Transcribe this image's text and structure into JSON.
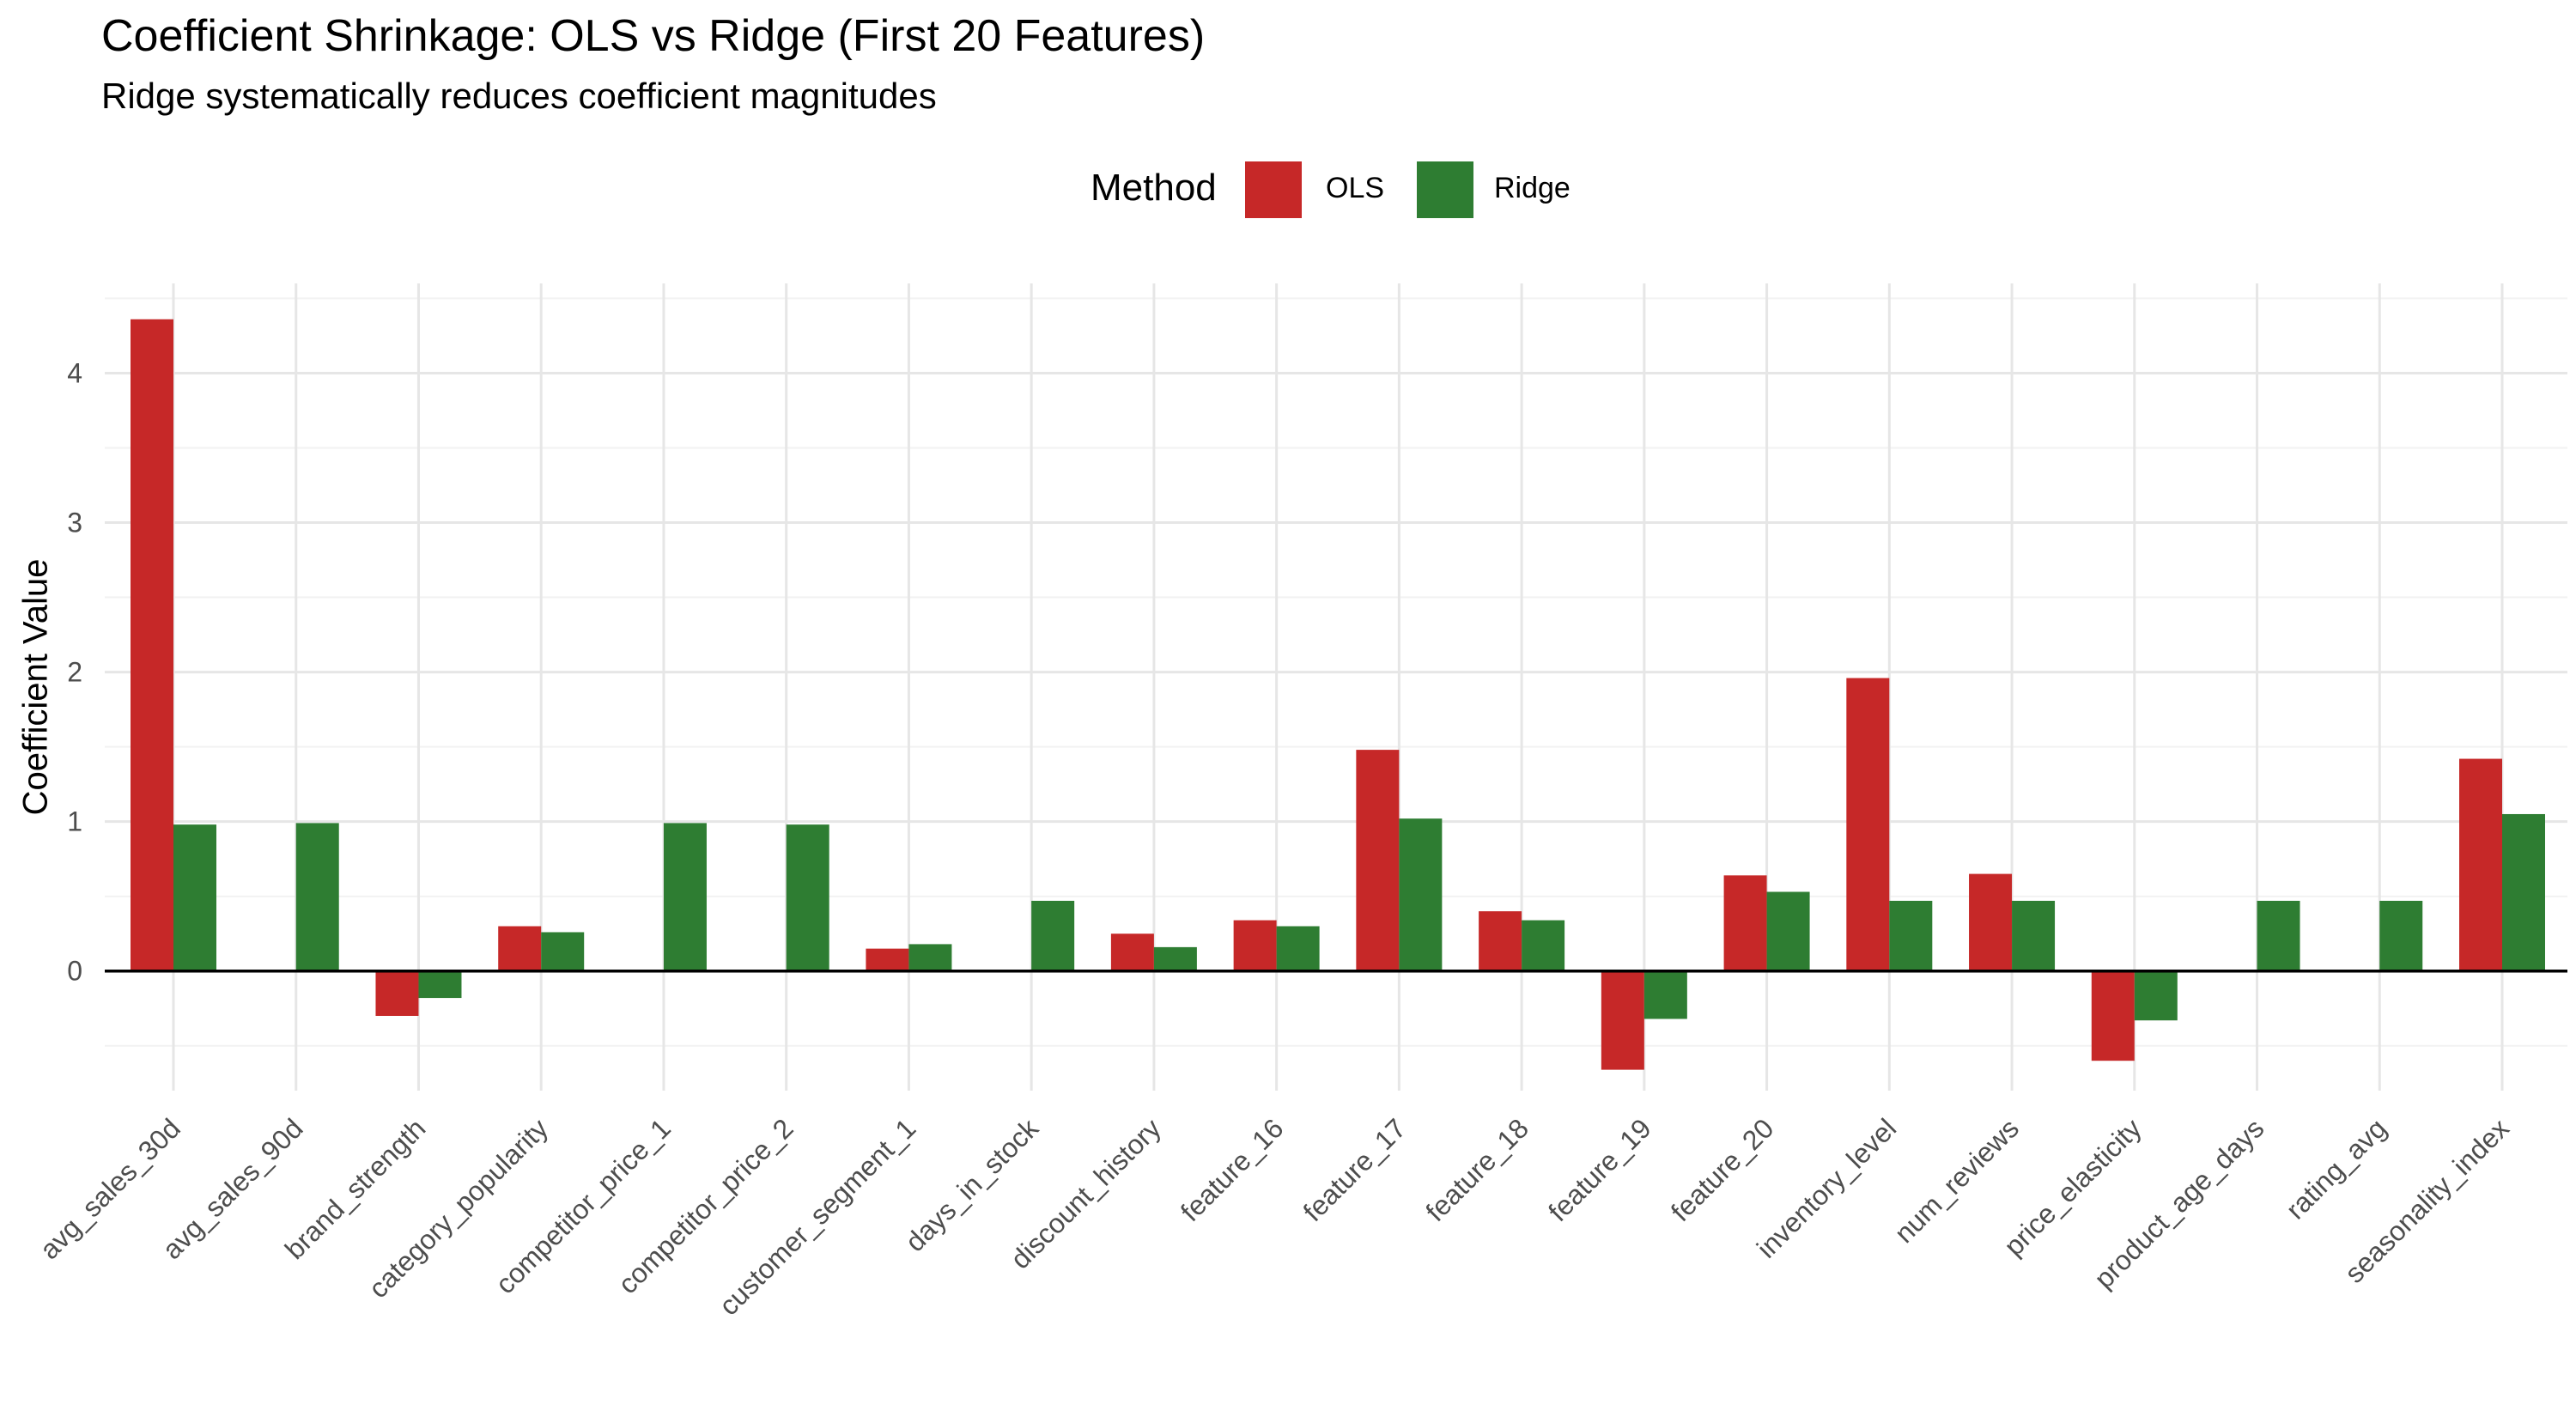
{
  "chart_data": {
    "type": "bar",
    "title": "Coefficient Shrinkage: OLS vs Ridge (First 20 Features)",
    "subtitle": "Ridge systematically reduces coefficient magnitudes",
    "xlabel": "",
    "ylabel": "Coefficient Value",
    "legend_title": "Method",
    "legend_position": "top",
    "grid": true,
    "ylim": [
      -0.8,
      4.6
    ],
    "yticks": [
      0,
      1,
      2,
      3,
      4
    ],
    "categories": [
      "avg_sales_30d",
      "avg_sales_90d",
      "brand_strength",
      "category_popularity",
      "competitor_price_1",
      "competitor_price_2",
      "customer_segment_1",
      "days_in_stock",
      "discount_history",
      "feature_16",
      "feature_17",
      "feature_18",
      "feature_19",
      "feature_20",
      "inventory_level",
      "num_reviews",
      "price_elasticity",
      "product_age_days",
      "rating_avg",
      "seasonality_index"
    ],
    "series": [
      {
        "name": "OLS",
        "color": "#c62828",
        "values": [
          4.36,
          null,
          -0.3,
          0.3,
          null,
          null,
          0.15,
          null,
          0.25,
          0.34,
          1.48,
          0.4,
          -0.66,
          0.64,
          1.96,
          0.65,
          -0.6,
          null,
          null,
          1.42
        ]
      },
      {
        "name": "Ridge",
        "color": "#2e7d32",
        "values": [
          0.98,
          0.99,
          -0.18,
          0.26,
          0.99,
          0.98,
          0.18,
          0.47,
          0.16,
          0.3,
          1.02,
          0.34,
          -0.32,
          0.53,
          0.47,
          0.47,
          -0.33,
          0.47,
          0.47,
          1.05
        ]
      }
    ]
  }
}
